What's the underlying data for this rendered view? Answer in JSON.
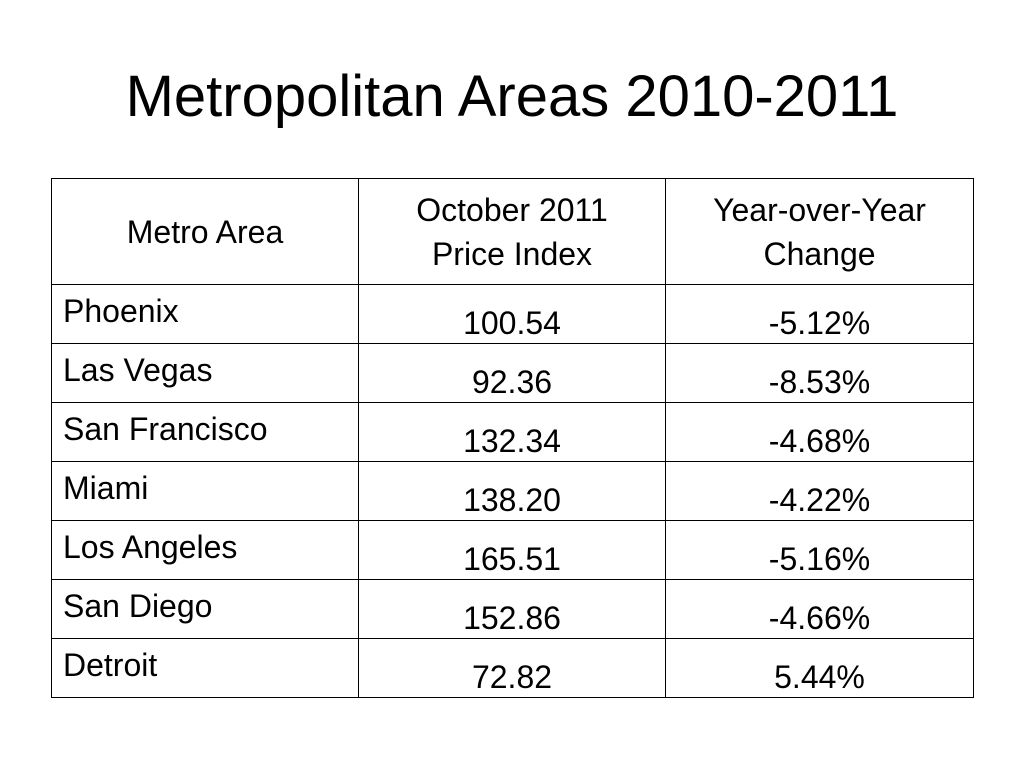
{
  "slide": {
    "title": "Metropolitan Areas 2010-2011"
  },
  "table": {
    "headers": {
      "area": "Metro Area",
      "index_line1": "October 2011",
      "index_line2": "Price Index",
      "change_line1": "Year-over-Year",
      "change_line2": "Change"
    },
    "rows": [
      {
        "area": "Phoenix",
        "index": "100.54",
        "change": "-5.12%"
      },
      {
        "area": "Las Vegas",
        "index": "92.36",
        "change": "-8.53%"
      },
      {
        "area": "San Francisco",
        "index": "132.34",
        "change": "-4.68%"
      },
      {
        "area": "Miami",
        "index": "138.20",
        "change": "-4.22%"
      },
      {
        "area": "Los Angeles",
        "index": "165.51",
        "change": "-5.16%"
      },
      {
        "area": "San Diego",
        "index": "152.86",
        "change": "-4.66%"
      },
      {
        "area": "Detroit",
        "index": "72.82",
        "change": "5.44%"
      }
    ]
  }
}
